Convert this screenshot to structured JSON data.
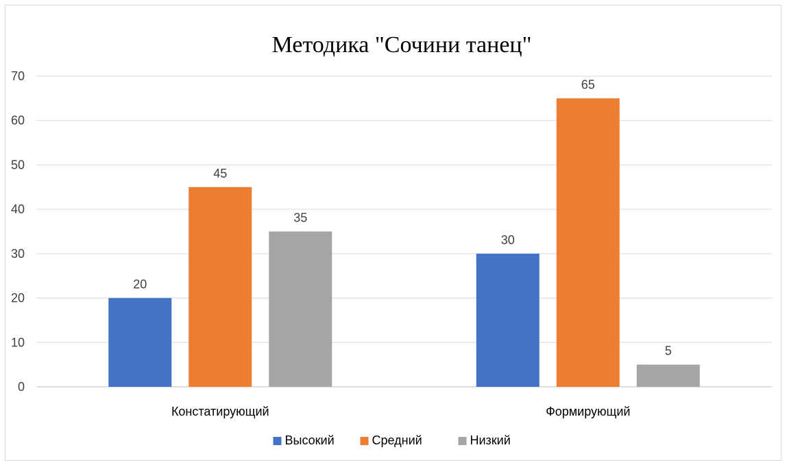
{
  "chart_data": {
    "type": "bar",
    "title": "Методика \"Сочини танец\"",
    "xlabel": "",
    "ylabel": "",
    "categories": [
      "Констатирующий",
      "Формирующий"
    ],
    "series": [
      {
        "name": "Высокий",
        "values": [
          20,
          30
        ],
        "color": "#4472c4"
      },
      {
        "name": "Средний",
        "values": [
          45,
          65
        ],
        "color": "#ed7d31"
      },
      {
        "name": "Низкий",
        "values": [
          35,
          5
        ],
        "color": "#a5a5a5"
      }
    ],
    "ylim": [
      0,
      70
    ],
    "yticks": [
      "0",
      "10",
      "20",
      "30",
      "40",
      "50",
      "60",
      "70"
    ],
    "grid": true,
    "data_labels": true,
    "legend_position": "bottom"
  }
}
